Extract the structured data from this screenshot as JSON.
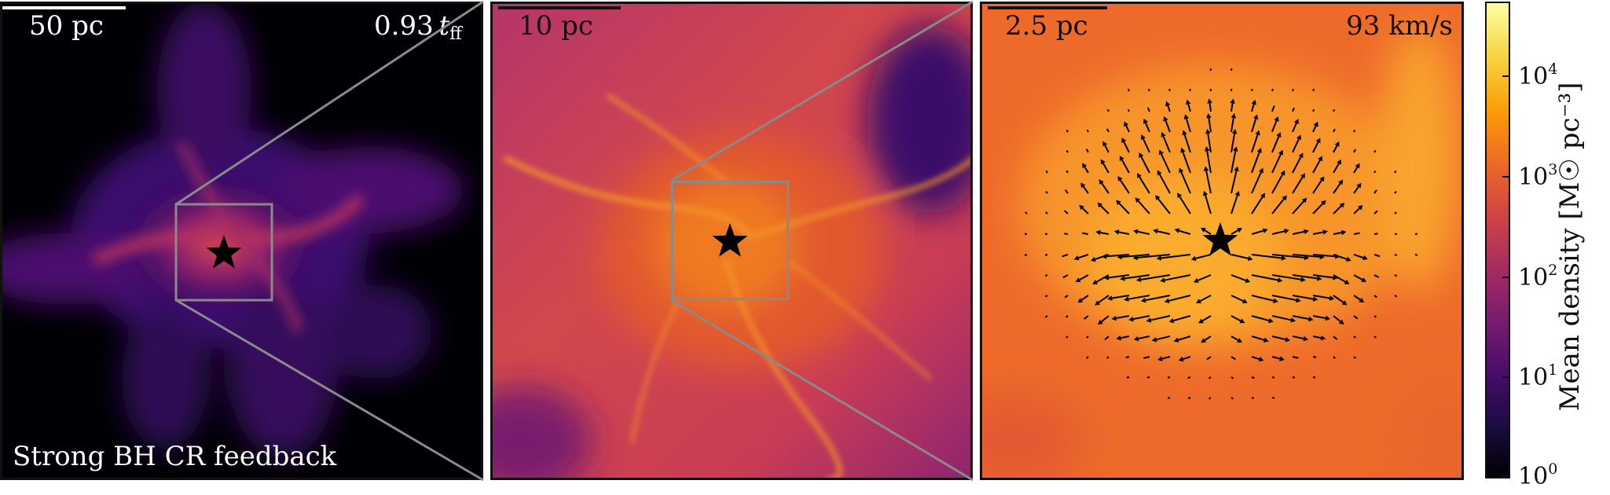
{
  "panels": {
    "left": {
      "scale_label": "50 pc",
      "time_value": "0.93",
      "time_symbol": "t",
      "time_subscript": "ff",
      "caption": "Strong BH CR feedback"
    },
    "middle": {
      "scale_label": "10 pc"
    },
    "right": {
      "scale_label": "2.5 pc",
      "velocity_label": "93 km/s"
    }
  },
  "colorbar": {
    "label": "Mean density [M☉ pc⁻³]",
    "tick_base": "10",
    "tick_exponents": [
      "0",
      "1",
      "2",
      "3",
      "4"
    ],
    "colormap": "inferno",
    "scale": "log"
  },
  "colors": {
    "zoom_box": "#8a8a8a",
    "star": "#000000",
    "frame": "#111111"
  },
  "icons": [
    "star-icon"
  ]
}
